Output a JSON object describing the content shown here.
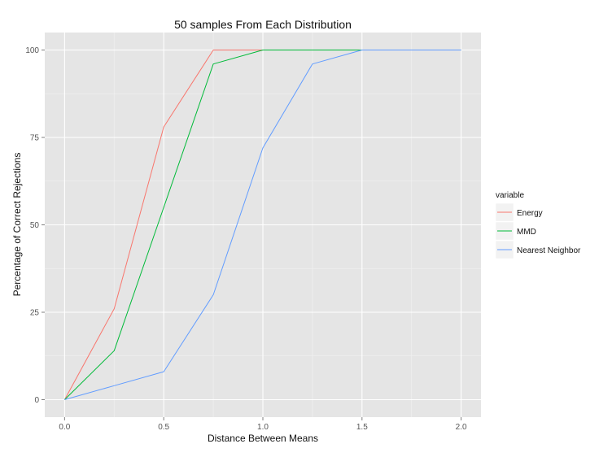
{
  "chart_data": {
    "type": "line",
    "title": "50 samples From Each Distribution",
    "xlabel": "Distance Between Means",
    "ylabel": "Percentage of Correct Rejections",
    "xlim": [
      -0.1,
      2.1
    ],
    "ylim": [
      -5,
      105
    ],
    "xticks": [
      0.0,
      0.5,
      1.0,
      1.5,
      2.0
    ],
    "xtick_labels": [
      "0.0",
      "0.5",
      "1.0",
      "1.5",
      "2.0"
    ],
    "yticks": [
      0,
      25,
      50,
      75,
      100
    ],
    "ytick_labels": [
      "0",
      "25",
      "50",
      "75",
      "100"
    ],
    "grid": true,
    "legend": {
      "title": "variable",
      "position": "right",
      "entries": [
        "Energy",
        "MMD",
        "Nearest Neighbor"
      ]
    },
    "series": [
      {
        "name": "Energy",
        "color": "#F8766D",
        "x": [
          0,
          0.25,
          0.5,
          0.75,
          1.0,
          1.25,
          1.5,
          1.75,
          2.0
        ],
        "y": [
          0,
          26,
          78,
          100,
          100,
          100,
          100,
          100,
          100
        ]
      },
      {
        "name": "MMD",
        "color": "#00BA38",
        "x": [
          0,
          0.25,
          0.5,
          0.75,
          1.0,
          1.25,
          1.5,
          1.75,
          2.0
        ],
        "y": [
          0,
          14,
          55,
          96,
          100,
          100,
          100,
          100,
          100
        ]
      },
      {
        "name": "Nearest Neighbor",
        "color": "#619CFF",
        "x": [
          0,
          0.25,
          0.5,
          0.75,
          1.0,
          1.25,
          1.5,
          1.75,
          2.0
        ],
        "y": [
          0,
          4,
          8,
          30,
          72,
          96,
          100,
          100,
          100
        ]
      }
    ]
  }
}
